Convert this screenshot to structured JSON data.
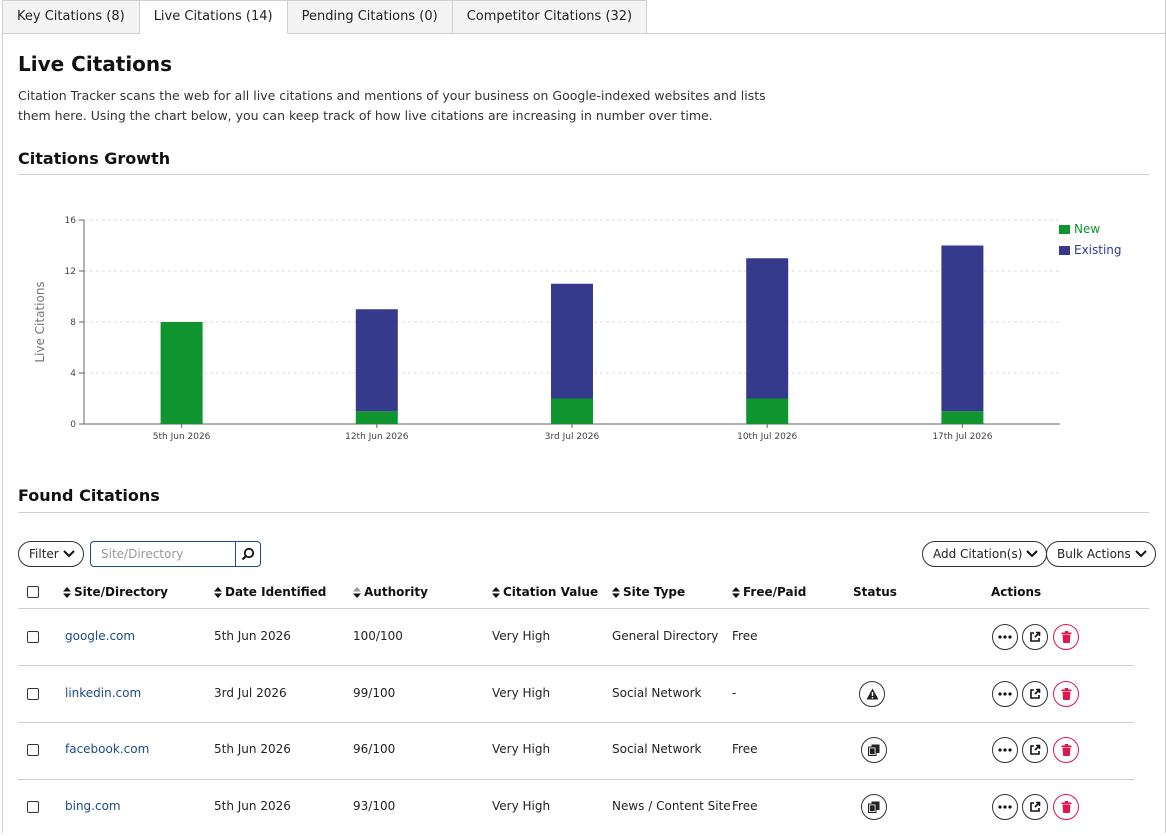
{
  "tabs": [
    {
      "label": "Key Citations (8)"
    },
    {
      "label": "Live Citations (14)",
      "active": true
    },
    {
      "label": "Pending Citations (0)"
    },
    {
      "label": "Competitor Citations (32)"
    }
  ],
  "page": {
    "title": "Live Citations",
    "description": "Citation Tracker scans the web for all live citations and mentions of your business on Google-indexed websites and lists them here. Using the chart below, you can keep track of how live citations are increasing in number over time."
  },
  "growth": {
    "heading": "Citations Growth"
  },
  "chart_data": {
    "type": "bar",
    "stacked": true,
    "categories": [
      "5th Jun 2026",
      "12th Jun 2026",
      "3rd Jul 2026",
      "10th Jul 2026",
      "17th Jul 2026"
    ],
    "series": [
      {
        "name": "New",
        "color": "#0f9430",
        "values": [
          8,
          1,
          2,
          2,
          1
        ]
      },
      {
        "name": "Existing",
        "color": "#363a8c",
        "values": [
          0,
          8,
          9,
          11,
          13
        ]
      }
    ],
    "ylabel": "Live Citations",
    "ylim": [
      0,
      16
    ],
    "yticks": [
      0,
      4,
      8,
      12,
      16
    ],
    "grid": true,
    "legend": "right"
  },
  "found": {
    "heading": "Found Citations",
    "filter_label": "Filter",
    "search_placeholder": "Site/Directory",
    "add_label": "Add Citation(s)",
    "bulk_label": "Bulk Actions"
  },
  "table": {
    "headers": {
      "site": "Site/Directory",
      "date": "Date Identified",
      "authority": "Authority",
      "value": "Citation Value",
      "type": "Site Type",
      "free_paid": "Free/Paid",
      "status": "Status",
      "actions": "Actions"
    },
    "rows": [
      {
        "site": "google.com",
        "date": "5th Jun 2026",
        "authority": "100/100",
        "value": "Very High",
        "type": "General Directory",
        "free_paid": "Free",
        "status": "none"
      },
      {
        "site": "linkedin.com",
        "date": "3rd Jul 2026",
        "authority": "99/100",
        "value": "Very High",
        "type": "Social Network",
        "free_paid": "-",
        "status": "warning-icon"
      },
      {
        "site": "facebook.com",
        "date": "5th Jun 2026",
        "authority": "96/100",
        "value": "Very High",
        "type": "Social Network",
        "free_paid": "Free",
        "status": "copy-icon"
      },
      {
        "site": "bing.com",
        "date": "5th Jun 2026",
        "authority": "93/100",
        "value": "Very High",
        "type": "News / Content Site",
        "free_paid": "Free",
        "status": "copy-icon"
      }
    ]
  }
}
